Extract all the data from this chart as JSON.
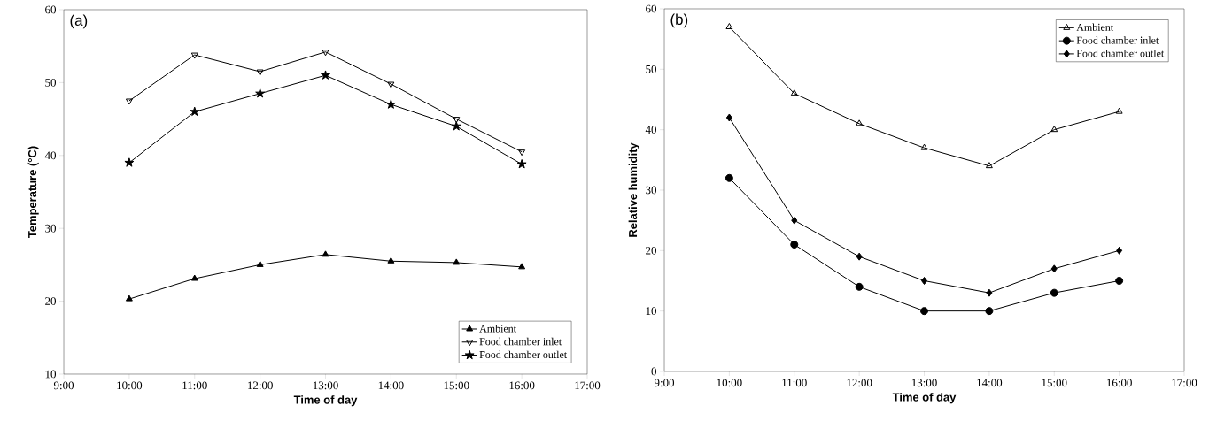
{
  "chart_data": [
    {
      "type": "line",
      "xlabel": "Time of day",
      "ylabel": "Temperature (°C)",
      "annotations": [
        "(a)"
      ],
      "x": [
        10,
        11,
        12,
        13,
        14,
        15,
        16
      ],
      "xlim": [
        9,
        17
      ],
      "xticks": [
        {
          "value": 9,
          "label": "9:00"
        },
        {
          "value": 10,
          "label": "10:00"
        },
        {
          "value": 11,
          "label": "11:00"
        },
        {
          "value": 12,
          "label": "12:00"
        },
        {
          "value": 13,
          "label": "13:00"
        },
        {
          "value": 14,
          "label": "14:00"
        },
        {
          "value": 15,
          "label": "15:00"
        },
        {
          "value": 16,
          "label": "16:00"
        },
        {
          "value": 17,
          "label": "17:00"
        }
      ],
      "ylim": [
        10,
        60
      ],
      "yticks": [
        10,
        20,
        30,
        40,
        50,
        60
      ],
      "legend": "bottom right",
      "series": [
        {
          "name": "Ambient",
          "color": "#000000",
          "marker": "triangle",
          "values": [
            20.3,
            23.1,
            25.0,
            26.4,
            25.5,
            25.3,
            24.7
          ]
        },
        {
          "name": "Food chamber inlet",
          "color": "#000000",
          "marker": "triangle",
          "values": [
            47.5,
            53.8,
            51.5,
            54.2,
            49.8,
            45.0,
            40.5
          ]
        },
        {
          "name": "Food chamber outlet",
          "color": "#000000",
          "marker": "star",
          "values": [
            39.0,
            46.0,
            48.5,
            51.0,
            47.0,
            44.0,
            38.8
          ]
        }
      ]
    },
    {
      "type": "line",
      "xlabel": "Time of day",
      "ylabel": "Relative humidity",
      "annotations": [
        "(b)"
      ],
      "x": [
        10,
        11,
        12,
        13,
        14,
        15,
        16
      ],
      "xlim": [
        9,
        17
      ],
      "xticks": [
        {
          "value": 9,
          "label": "9:00"
        },
        {
          "value": 10,
          "label": "10:00"
        },
        {
          "value": 11,
          "label": "11:00"
        },
        {
          "value": 12,
          "label": "12:00"
        },
        {
          "value": 13,
          "label": "13:00"
        },
        {
          "value": 14,
          "label": "14:00"
        },
        {
          "value": 15,
          "label": "15:00"
        },
        {
          "value": 16,
          "label": "16:00"
        },
        {
          "value": 17,
          "label": "17:00"
        }
      ],
      "ylim": [
        0,
        60
      ],
      "yticks": [
        0,
        10,
        20,
        30,
        40,
        50,
        60
      ],
      "legend": "top right",
      "series": [
        {
          "name": "Ambient",
          "color": "#000000",
          "marker": "triangle",
          "values": [
            57,
            46,
            41,
            37,
            34,
            40,
            43
          ]
        },
        {
          "name": "Food chamber inlet",
          "color": "#000000",
          "marker": "circle",
          "values": [
            32,
            21,
            14,
            10,
            10,
            13,
            15
          ]
        },
        {
          "name": "Food chamber outlet",
          "color": "#000000",
          "marker": "diamond",
          "values": [
            42,
            25,
            19,
            15,
            13,
            17,
            20
          ]
        }
      ]
    }
  ]
}
